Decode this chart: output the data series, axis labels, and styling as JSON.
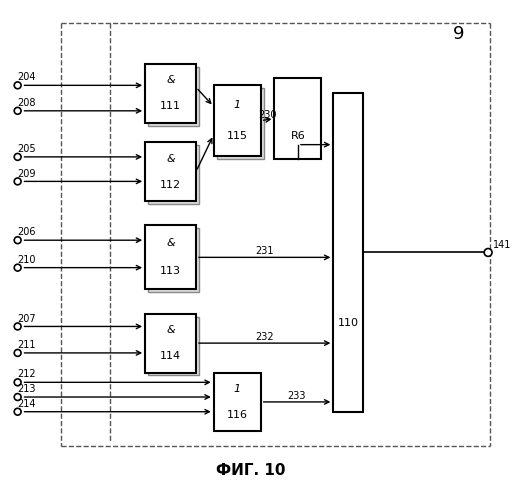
{
  "fig_label": "ФИГ. 10",
  "module_label": "9",
  "bg_color": "#ffffff",
  "line_color": "#000000"
}
